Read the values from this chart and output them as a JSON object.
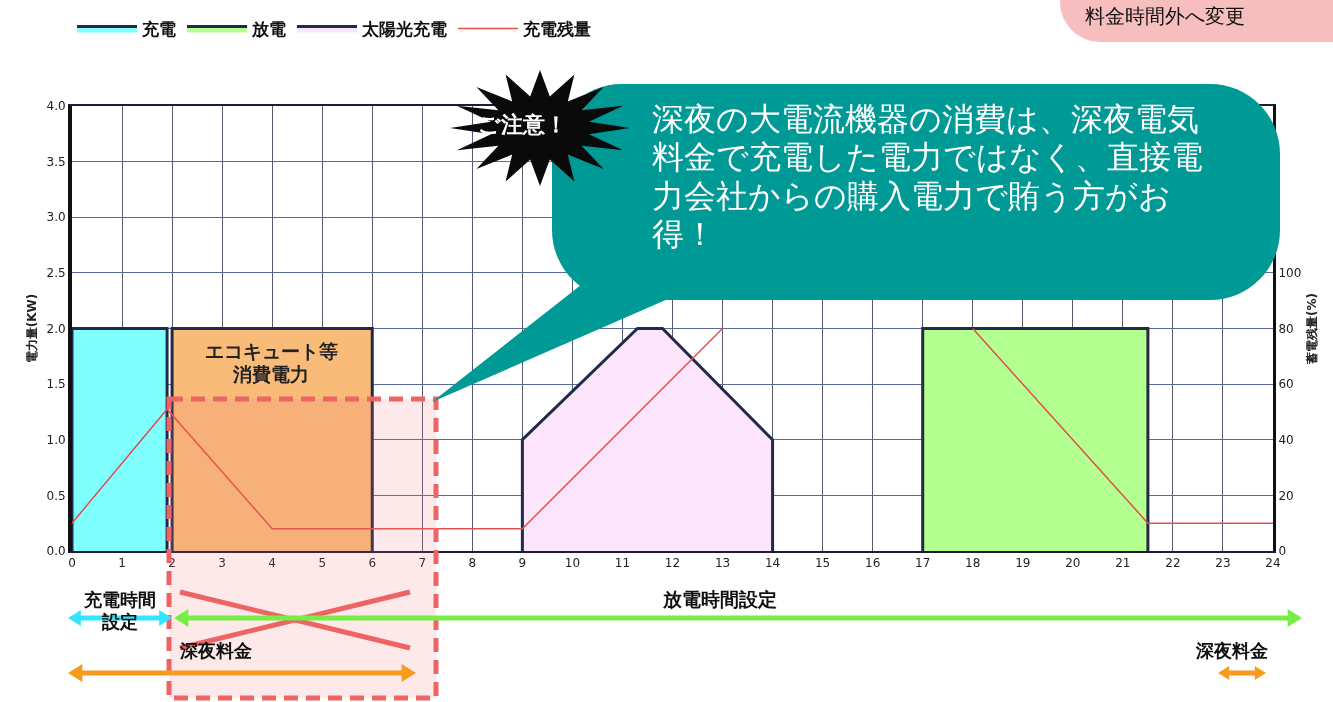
{
  "chart_data": {
    "type": "area",
    "ylabel": "電力量(KW)",
    "y2label": "蓄電残量(%)",
    "xlim": [
      0,
      24
    ],
    "xticks": [
      0,
      1,
      2,
      3,
      4,
      5,
      6,
      7,
      8,
      9,
      10,
      11,
      12,
      13,
      14,
      15,
      16,
      17,
      18,
      19,
      20,
      21,
      22,
      23,
      24
    ],
    "ylim": [
      0,
      4
    ],
    "yticks": [
      {
        "value": 0,
        "label": "0.0"
      },
      {
        "value": 0.5,
        "label": "0.5"
      },
      {
        "value": 1,
        "label": "1.0"
      },
      {
        "value": 1.5,
        "label": "1.5"
      },
      {
        "value": 2,
        "label": "2.0"
      },
      {
        "value": 2.5,
        "label": "2.5"
      },
      {
        "value": 3,
        "label": "3.0"
      },
      {
        "value": 3.5,
        "label": "3.5"
      },
      {
        "value": 4,
        "label": "4.0"
      }
    ],
    "y2lim": [
      0,
      160
    ],
    "y2ticks": [
      0,
      20,
      40,
      60,
      80,
      100
    ],
    "grid": true,
    "legend": "top left",
    "series": [
      {
        "color": "#f8bb78",
        "x": [
          2,
          2,
          6,
          6
        ],
        "values": [
          0,
          2,
          2,
          0
        ]
      },
      {
        "name": "充電",
        "color": "#80ffff",
        "x": [
          0,
          0,
          1.9,
          1.9
        ],
        "values": [
          0,
          2,
          2,
          0
        ]
      },
      {
        "name": "放電",
        "color": "#b3ff8f",
        "x": [
          17,
          17,
          21.5,
          21.5
        ],
        "values": [
          0,
          2,
          2,
          0
        ]
      },
      {
        "name": "太陽光充電",
        "color": "#fce5fb",
        "x": [
          9,
          9,
          11.3,
          11.8,
          14,
          14
        ],
        "values": [
          0,
          1,
          2,
          2,
          1,
          0
        ]
      },
      {
        "name": "充電残量",
        "type": "line",
        "axis": "y2",
        "color": "#e05050",
        "x": [
          0,
          1.9,
          4,
          9,
          13,
          15.5,
          18,
          21.5,
          24
        ],
        "values": [
          10,
          51,
          8,
          8,
          80,
          null,
          80,
          10,
          10
        ]
      }
    ],
    "annotations": [
      "深夜の大電流機器の消費は、深夜電気料金で充電した電力ではなく、直接電力会社からの購入電力で賄う方がお得！",
      "ご注意！",
      "料金時間外へ変更",
      "充電時間設定",
      "放電時間設定",
      "深夜料金",
      "深夜料金",
      "エコキュート等消費電力"
    ]
  }
}
